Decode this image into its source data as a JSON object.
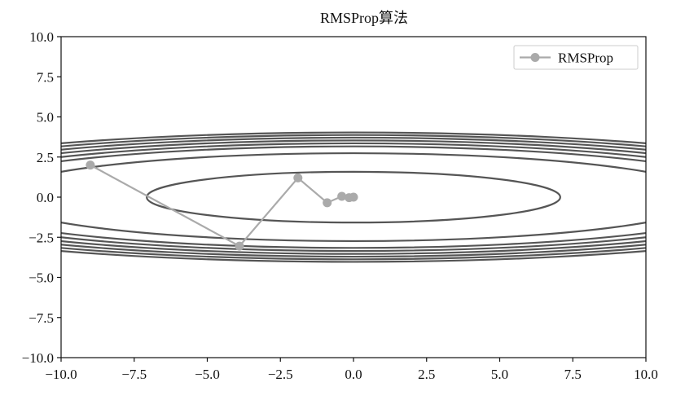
{
  "chart_data": {
    "type": "line",
    "title": "RMSProp算法",
    "xlim": [
      -10.0,
      10.0
    ],
    "ylim": [
      -10.0,
      10.0
    ],
    "xticks": [
      -10.0,
      -7.5,
      -5.0,
      -2.5,
      0.0,
      2.5,
      5.0,
      7.5,
      10.0
    ],
    "xtick_labels": [
      "−10.0",
      "−7.5",
      "−5.0",
      "−2.5",
      "0.0",
      "2.5",
      "5.0",
      "7.5",
      "10.0"
    ],
    "yticks": [
      10.0,
      7.5,
      5.0,
      2.5,
      0.0,
      -2.5,
      -5.0,
      -7.5,
      -10.0
    ],
    "ytick_labels": [
      "10.0",
      "7.5",
      "5.0",
      "2.5",
      "0.0",
      "−2.5",
      "−5.0",
      "−7.5",
      "−10.0"
    ],
    "grid": false,
    "legend_position": "top-right",
    "series": [
      {
        "name": "RMSProp",
        "color": "#aaaaaa",
        "marker": "circle",
        "x": [
          -9.0,
          -3.9,
          -1.9,
          -0.9,
          -0.4,
          -0.15,
          0.0
        ],
        "y": [
          2.0,
          -3.05,
          1.2,
          -0.35,
          0.05,
          -0.03,
          0.0
        ]
      }
    ],
    "contour": {
      "function": "0.1*x^2 + 2*y^2",
      "levels": [
        5,
        15,
        20,
        22.5,
        25,
        27.5,
        30,
        32.5
      ],
      "color": "#555555"
    }
  }
}
